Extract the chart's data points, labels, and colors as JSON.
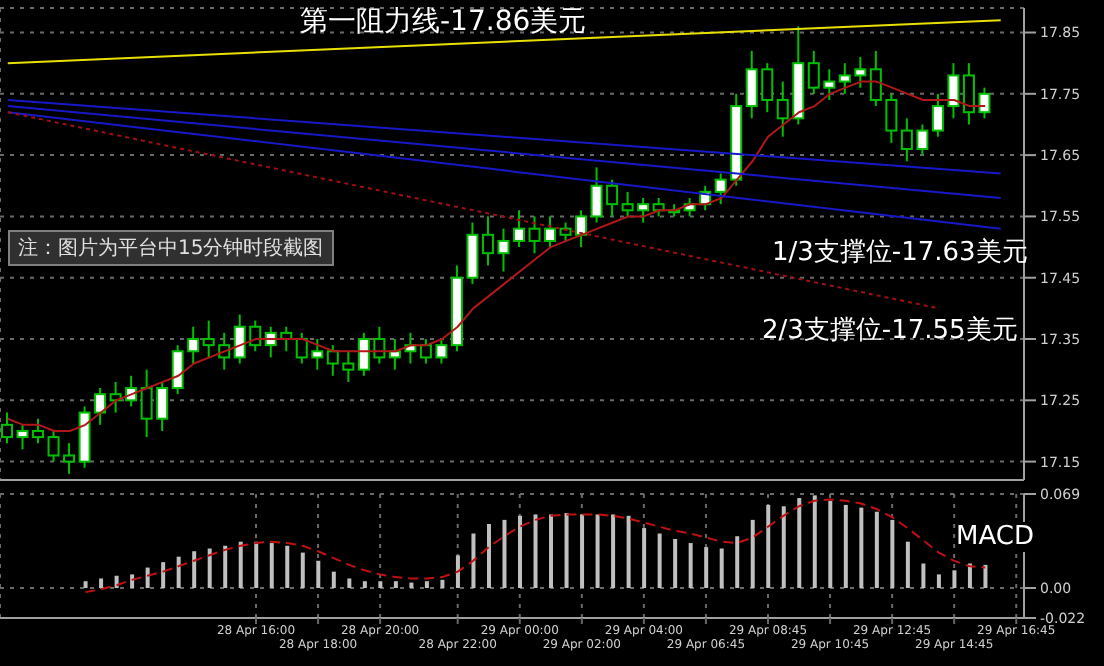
{
  "chart_data": [
    {
      "type": "candlestick",
      "color": "#00c000",
      "categories": [
        null,
        null,
        null,
        null,
        null,
        null,
        null,
        null,
        null,
        null,
        null,
        null,
        null,
        null,
        null,
        null,
        null,
        null,
        null,
        null,
        null,
        null,
        null,
        null,
        null,
        null,
        null,
        null,
        null,
        null,
        null,
        null,
        null,
        null,
        null,
        null,
        null,
        null,
        null,
        null,
        null,
        null,
        null,
        null,
        null,
        null,
        null,
        null,
        null,
        null,
        null,
        null,
        null,
        null,
        null,
        null,
        null,
        null,
        null,
        null,
        null,
        null,
        null,
        null,
        null,
        null
      ],
      "ohlc": [
        [
          17.21,
          17.23,
          17.18,
          17.19
        ],
        [
          17.19,
          17.21,
          17.17,
          17.2
        ],
        [
          17.2,
          17.22,
          17.18,
          17.19
        ],
        [
          17.19,
          17.2,
          17.15,
          17.16
        ],
        [
          17.16,
          17.18,
          17.13,
          17.15
        ],
        [
          17.15,
          17.24,
          17.14,
          17.23
        ],
        [
          17.23,
          17.27,
          17.21,
          17.26
        ],
        [
          17.26,
          17.28,
          17.23,
          17.25
        ],
        [
          17.25,
          17.29,
          17.24,
          17.27
        ],
        [
          17.27,
          17.3,
          17.19,
          17.22
        ],
        [
          17.22,
          17.28,
          17.2,
          17.27
        ],
        [
          17.27,
          17.34,
          17.26,
          17.33
        ],
        [
          17.33,
          17.37,
          17.31,
          17.35
        ],
        [
          17.35,
          17.38,
          17.32,
          17.34
        ],
        [
          17.34,
          17.36,
          17.3,
          17.32
        ],
        [
          17.32,
          17.39,
          17.31,
          17.37
        ],
        [
          17.37,
          17.38,
          17.33,
          17.34
        ],
        [
          17.34,
          17.37,
          17.32,
          17.36
        ],
        [
          17.36,
          17.37,
          17.33,
          17.35
        ],
        [
          17.35,
          17.36,
          17.31,
          17.32
        ],
        [
          17.32,
          17.35,
          17.3,
          17.33
        ],
        [
          17.33,
          17.34,
          17.29,
          17.31
        ],
        [
          17.31,
          17.33,
          17.28,
          17.3
        ],
        [
          17.3,
          17.36,
          17.29,
          17.35
        ],
        [
          17.35,
          17.37,
          17.31,
          17.32
        ],
        [
          17.32,
          17.35,
          17.3,
          17.33
        ],
        [
          17.33,
          17.36,
          17.31,
          17.34
        ],
        [
          17.34,
          17.35,
          17.31,
          17.32
        ],
        [
          17.32,
          17.35,
          17.31,
          17.34
        ],
        [
          17.34,
          17.47,
          17.33,
          17.45
        ],
        [
          17.45,
          17.54,
          17.44,
          17.52
        ],
        [
          17.52,
          17.55,
          17.47,
          17.49
        ],
        [
          17.49,
          17.53,
          17.46,
          17.51
        ],
        [
          17.51,
          17.56,
          17.5,
          17.53
        ],
        [
          17.53,
          17.55,
          17.49,
          17.51
        ],
        [
          17.51,
          17.55,
          17.5,
          17.53
        ],
        [
          17.53,
          17.54,
          17.51,
          17.52
        ],
        [
          17.52,
          17.56,
          17.5,
          17.55
        ],
        [
          17.55,
          17.63,
          17.54,
          17.6
        ],
        [
          17.6,
          17.61,
          17.55,
          17.57
        ],
        [
          17.57,
          17.59,
          17.55,
          17.56
        ],
        [
          17.56,
          17.58,
          17.54,
          17.57
        ],
        [
          17.57,
          17.58,
          17.55,
          17.56
        ],
        [
          17.56,
          17.57,
          17.55,
          17.56
        ],
        [
          17.56,
          17.58,
          17.55,
          17.57
        ],
        [
          17.57,
          17.6,
          17.56,
          17.59
        ],
        [
          17.59,
          17.62,
          17.57,
          17.61
        ],
        [
          17.61,
          17.75,
          17.6,
          17.73
        ],
        [
          17.73,
          17.82,
          17.71,
          17.79
        ],
        [
          17.79,
          17.8,
          17.72,
          17.74
        ],
        [
          17.74,
          17.77,
          17.68,
          17.71
        ],
        [
          17.71,
          17.86,
          17.7,
          17.8
        ],
        [
          17.8,
          17.82,
          17.75,
          17.76
        ],
        [
          17.76,
          17.79,
          17.74,
          17.77
        ],
        [
          17.77,
          17.8,
          17.75,
          17.78
        ],
        [
          17.78,
          17.81,
          17.76,
          17.79
        ],
        [
          17.79,
          17.82,
          17.73,
          17.74
        ],
        [
          17.74,
          17.75,
          17.67,
          17.69
        ],
        [
          17.69,
          17.71,
          17.64,
          17.66
        ],
        [
          17.66,
          17.7,
          17.65,
          17.69
        ],
        [
          17.69,
          17.75,
          17.68,
          17.73
        ],
        [
          17.73,
          17.8,
          17.71,
          17.78
        ],
        [
          17.78,
          17.8,
          17.7,
          17.72
        ],
        [
          17.72,
          17.76,
          17.71,
          17.75
        ],
        null,
        null
      ],
      "series": [
        {
          "type": "line",
          "color": "#b01818",
          "values": [
            17.22,
            17.21,
            17.21,
            17.2,
            17.2,
            17.21,
            17.23,
            17.25,
            17.26,
            17.27,
            17.28,
            17.29,
            17.31,
            17.32,
            17.33,
            17.34,
            17.35,
            17.35,
            17.35,
            17.35,
            17.34,
            17.33,
            17.33,
            17.33,
            17.33,
            17.33,
            17.34,
            17.34,
            17.35,
            17.37,
            17.4,
            17.42,
            17.44,
            17.46,
            17.48,
            17.5,
            17.51,
            17.52,
            17.53,
            17.54,
            17.55,
            17.55,
            17.56,
            17.56,
            17.57,
            17.57,
            17.58,
            17.61,
            17.64,
            17.68,
            17.7,
            17.72,
            17.73,
            17.75,
            17.76,
            17.77,
            17.77,
            17.76,
            17.75,
            17.74,
            17.74,
            17.74,
            17.73,
            17.73,
            null,
            null
          ]
        },
        {
          "type": "line",
          "color": "#e8e000",
          "values": [
            17.8,
            null,
            null,
            null,
            null,
            null,
            null,
            null,
            null,
            null,
            null,
            null,
            null,
            null,
            null,
            null,
            null,
            null,
            null,
            null,
            null,
            null,
            null,
            null,
            null,
            null,
            null,
            null,
            null,
            null,
            null,
            null,
            null,
            null,
            null,
            null,
            null,
            null,
            null,
            null,
            null,
            null,
            null,
            null,
            null,
            null,
            null,
            null,
            null,
            null,
            null,
            null,
            null,
            null,
            null,
            null,
            null,
            null,
            null,
            null,
            null,
            null,
            null,
            null,
            17.87,
            null
          ]
        },
        {
          "type": "line",
          "color": "#1818c8",
          "values": [
            17.74,
            null,
            null,
            null,
            null,
            null,
            null,
            null,
            null,
            null,
            null,
            null,
            null,
            null,
            null,
            null,
            null,
            null,
            null,
            null,
            null,
            null,
            null,
            null,
            null,
            null,
            null,
            null,
            null,
            null,
            null,
            null,
            null,
            null,
            null,
            null,
            null,
            null,
            null,
            null,
            null,
            null,
            null,
            null,
            null,
            null,
            null,
            null,
            null,
            null,
            null,
            null,
            null,
            null,
            null,
            null,
            null,
            null,
            null,
            null,
            null,
            null,
            null,
            null,
            17.62,
            null
          ]
        },
        {
          "type": "line",
          "color": "#1818c8",
          "values": [
            17.73,
            null,
            null,
            null,
            null,
            null,
            null,
            null,
            null,
            null,
            null,
            null,
            null,
            null,
            null,
            null,
            null,
            null,
            null,
            null,
            null,
            null,
            null,
            null,
            null,
            null,
            null,
            null,
            null,
            null,
            null,
            null,
            null,
            null,
            null,
            null,
            null,
            null,
            null,
            null,
            null,
            null,
            null,
            null,
            null,
            null,
            null,
            null,
            null,
            null,
            null,
            null,
            null,
            null,
            null,
            null,
            null,
            null,
            null,
            null,
            null,
            null,
            null,
            null,
            17.58,
            null
          ]
        },
        {
          "type": "line",
          "color": "#1818c8",
          "values": [
            17.72,
            null,
            null,
            null,
            null,
            null,
            null,
            null,
            null,
            null,
            null,
            null,
            null,
            null,
            null,
            null,
            null,
            null,
            null,
            null,
            null,
            null,
            null,
            null,
            null,
            null,
            null,
            null,
            null,
            null,
            null,
            null,
            null,
            null,
            null,
            null,
            null,
            null,
            null,
            null,
            null,
            null,
            null,
            null,
            null,
            null,
            null,
            null,
            null,
            null,
            null,
            null,
            null,
            null,
            null,
            null,
            null,
            null,
            null,
            null,
            null,
            null,
            null,
            null,
            17.53,
            null
          ]
        },
        {
          "type": "line",
          "color": "#a01010",
          "line_style": "dotted",
          "values": [
            17.72,
            null,
            null,
            null,
            null,
            null,
            null,
            null,
            null,
            null,
            null,
            null,
            null,
            null,
            null,
            null,
            null,
            null,
            null,
            null,
            null,
            null,
            null,
            null,
            null,
            null,
            null,
            null,
            null,
            null,
            null,
            null,
            null,
            null,
            null,
            null,
            null,
            null,
            null,
            null,
            null,
            null,
            null,
            null,
            null,
            null,
            null,
            null,
            null,
            null,
            null,
            null,
            null,
            null,
            null,
            null,
            null,
            null,
            null,
            null,
            17.4,
            null,
            null,
            null,
            null,
            null
          ]
        }
      ],
      "ylim": [
        17.12,
        17.89
      ],
      "yticks": [
        17.15,
        17.25,
        17.35,
        17.45,
        17.55,
        17.65,
        17.75,
        17.85
      ],
      "grid": true,
      "tick_labels": "y",
      "annotations": [
        "第一阻力线-17.86美元",
        "1/3支撑位-17.63美元",
        "2/3支撑位-17.55美元"
      ]
    },
    {
      "type": "bar",
      "categories": [
        null,
        null,
        null,
        null,
        null,
        null,
        null,
        null,
        null,
        null,
        null,
        null,
        null,
        null,
        null,
        null,
        "28 Apr 16:00",
        null,
        null,
        null,
        "28 Apr 18:00",
        null,
        null,
        null,
        "28 Apr 20:00",
        null,
        null,
        null,
        null,
        "28 Apr 22:00",
        null,
        null,
        null,
        "29 Apr 00:00",
        null,
        null,
        null,
        "29 Apr 02:00",
        null,
        null,
        null,
        "29 Apr 04:00",
        null,
        null,
        null,
        "29 Apr 06:45",
        null,
        null,
        null,
        "29 Apr 08:45",
        null,
        null,
        null,
        "29 Apr 10:45",
        null,
        null,
        null,
        "29 Apr 12:45",
        null,
        null,
        null,
        "29 Apr 14:45",
        null,
        null,
        null,
        "29 Apr 16:45"
      ],
      "series": [
        {
          "type": "bar",
          "color": "#c0c0c0",
          "values": [
            null,
            null,
            null,
            null,
            null,
            0.005,
            0.007,
            0.009,
            0.01,
            0.015,
            0.019,
            0.023,
            0.027,
            0.029,
            0.031,
            0.034,
            0.034,
            0.033,
            0.031,
            0.026,
            0.02,
            0.012,
            0.007,
            0.005,
            0.005,
            0.005,
            0.004,
            0.005,
            0.006,
            0.024,
            0.04,
            0.047,
            0.05,
            0.053,
            0.054,
            0.054,
            0.055,
            0.054,
            0.054,
            0.054,
            0.053,
            0.044,
            0.04,
            0.036,
            0.033,
            0.03,
            0.029,
            0.038,
            0.05,
            0.061,
            0.06,
            0.066,
            0.068,
            0.064,
            0.061,
            0.059,
            0.056,
            0.05,
            0.034,
            0.018,
            0.01,
            0.013,
            0.018,
            0.017,
            null,
            null
          ]
        },
        {
          "type": "line",
          "color": "#c01010",
          "line_style": "dashed",
          "values": [
            null,
            null,
            null,
            null,
            null,
            -0.003,
            -0.001,
            0.002,
            0.006,
            0.009,
            0.012,
            0.016,
            0.02,
            0.024,
            0.028,
            0.031,
            0.033,
            0.034,
            0.033,
            0.031,
            0.027,
            0.022,
            0.017,
            0.013,
            0.01,
            0.008,
            0.007,
            0.007,
            0.008,
            0.012,
            0.02,
            0.03,
            0.038,
            0.045,
            0.05,
            0.053,
            0.054,
            0.054,
            0.054,
            0.053,
            0.051,
            0.048,
            0.045,
            0.042,
            0.04,
            0.037,
            0.034,
            0.033,
            0.037,
            0.045,
            0.053,
            0.06,
            0.064,
            0.065,
            0.064,
            0.062,
            0.058,
            0.052,
            0.044,
            0.035,
            0.026,
            0.02,
            0.016,
            0.015,
            null,
            null
          ]
        }
      ],
      "ylim": [
        -0.022,
        0.069
      ],
      "yticks": [
        -0.022,
        {
          "value": 0,
          "label": "0.00"
        },
        0.069
      ],
      "grid": true,
      "annotations": [
        "MACD",
        "注：图片为平台中15分钟时段截图"
      ]
    }
  ]
}
